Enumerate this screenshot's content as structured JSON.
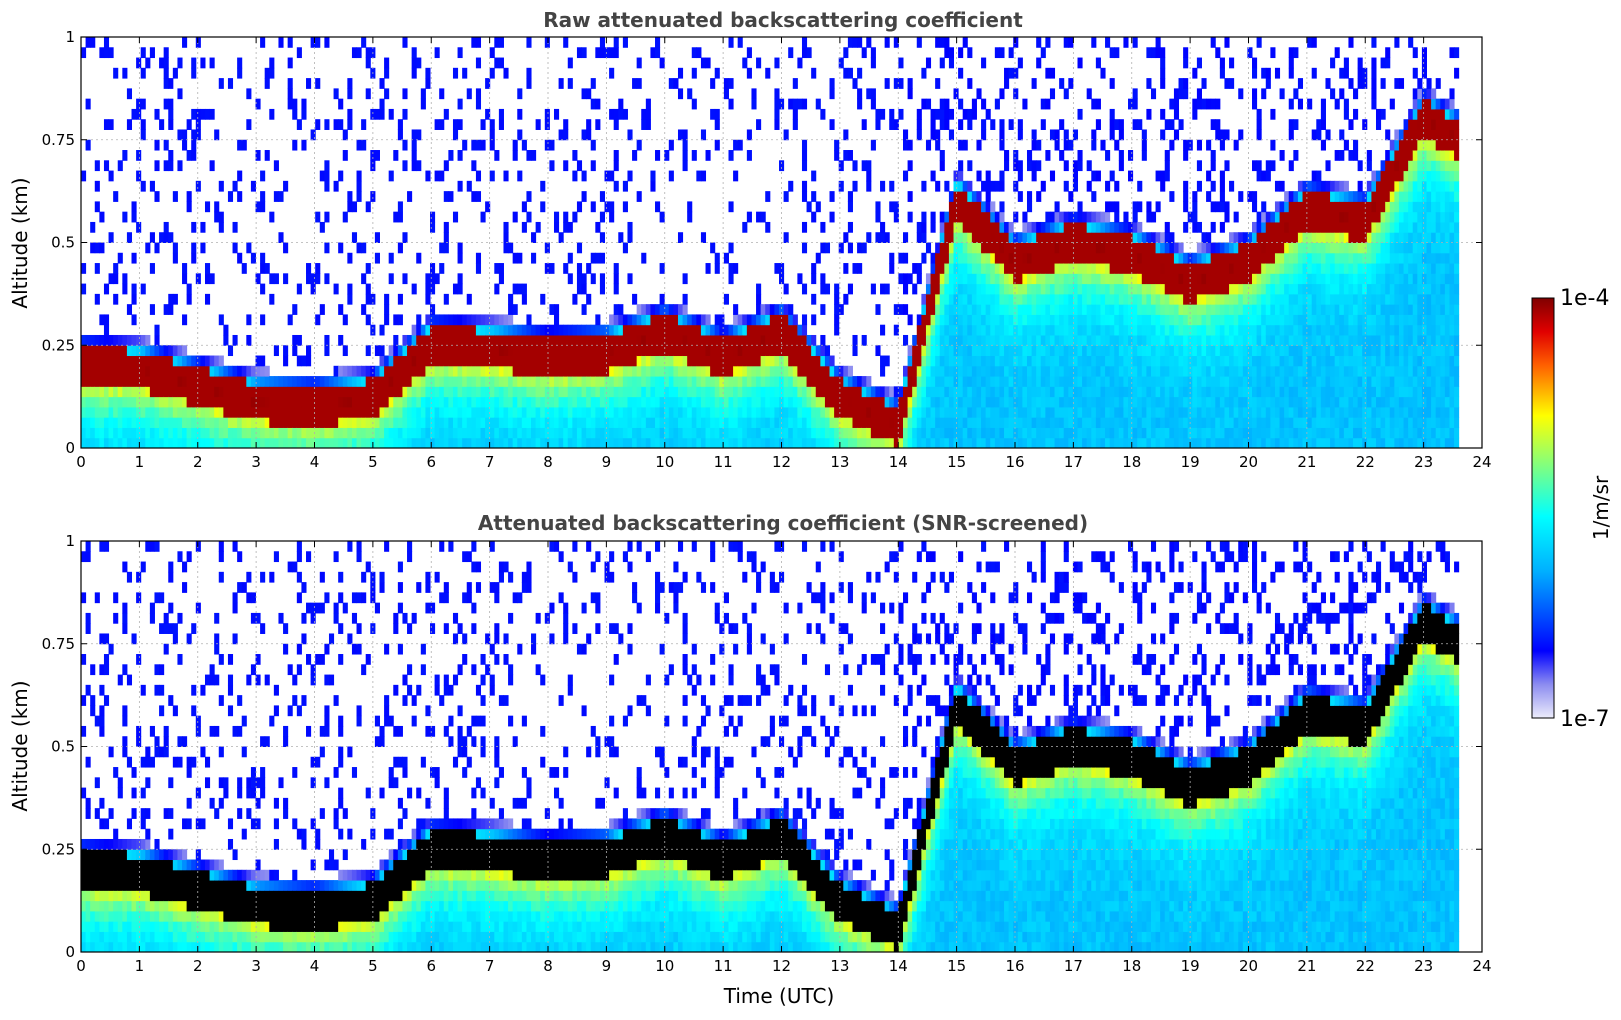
{
  "chart_data": [
    {
      "type": "heatmap",
      "title": "Raw attenuated backscattering coefficient",
      "xlabel": "",
      "ylabel": "Altitude (km)",
      "xlim": [
        0,
        24
      ],
      "ylim": [
        0,
        1
      ],
      "xticks": [
        "0",
        "1",
        "2",
        "3",
        "4",
        "5",
        "6",
        "7",
        "8",
        "9",
        "10",
        "11",
        "12",
        "13",
        "14",
        "15",
        "16",
        "17",
        "18",
        "19",
        "20",
        "21",
        "22",
        "23",
        "24"
      ],
      "yticks": [
        "0",
        "0.25",
        "0.5",
        "0.75",
        "1"
      ],
      "grid": true,
      "data_extent_hours": [
        0,
        23.6
      ],
      "layer_profile": {
        "time_utc": [
          0,
          1,
          2,
          3,
          4,
          5,
          6,
          7,
          8,
          9,
          10,
          11,
          12,
          13,
          14,
          15,
          16,
          17,
          18,
          19,
          20,
          21,
          22,
          23,
          23.6
        ],
        "peak_altitude_km": [
          0.2,
          0.19,
          0.15,
          0.11,
          0.1,
          0.12,
          0.25,
          0.24,
          0.22,
          0.23,
          0.28,
          0.22,
          0.28,
          0.12,
          0.05,
          0.6,
          0.45,
          0.5,
          0.47,
          0.4,
          0.45,
          0.58,
          0.55,
          0.8,
          0.75
        ]
      },
      "mode": "raw"
    },
    {
      "type": "heatmap",
      "title": "Attenuated backscattering coefficient (SNR-screened)",
      "xlabel": "Time (UTC)",
      "ylabel": "Altitude (km)",
      "xlim": [
        0,
        24
      ],
      "ylim": [
        0,
        1
      ],
      "xticks": [
        "0",
        "1",
        "2",
        "3",
        "4",
        "5",
        "6",
        "7",
        "8",
        "9",
        "10",
        "11",
        "12",
        "13",
        "14",
        "15",
        "16",
        "17",
        "18",
        "19",
        "20",
        "21",
        "22",
        "23",
        "24"
      ],
      "yticks": [
        "0",
        "0.25",
        "0.5",
        "0.75",
        "1"
      ],
      "grid": true,
      "data_extent_hours": [
        0,
        23.6
      ],
      "mode": "screened"
    }
  ],
  "colorbar": {
    "label": "1/m/sr",
    "max_label": "1e-4",
    "min_label": "1e-7",
    "scale": "log",
    "range": [
      1e-07,
      0.0001
    ],
    "colormap": "jet-with-light-low-end"
  }
}
